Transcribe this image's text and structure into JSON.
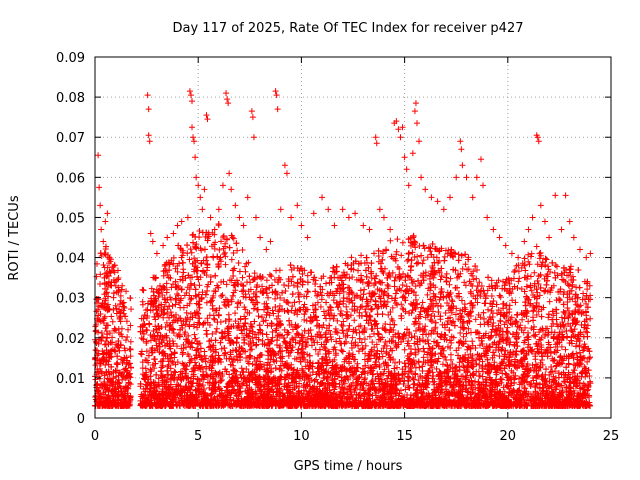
{
  "chart_data": {
    "type": "scatter",
    "title": "Day 117 of 2025, Rate Of TEC Index for receiver p427",
    "xlabel": "GPS time / hours",
    "ylabel": "ROTI / TECUs",
    "xlim": [
      0,
      25
    ],
    "ylim": [
      0,
      0.09
    ],
    "xticks": [
      0,
      5,
      10,
      15,
      20,
      25
    ],
    "xtick_labels": [
      "0",
      "5",
      "10",
      "15",
      "20",
      "25"
    ],
    "yticks": [
      0,
      0.01,
      0.02,
      0.03,
      0.04,
      0.05,
      0.06,
      0.07,
      0.08,
      0.09
    ],
    "ytick_labels": [
      "0",
      "0.01",
      "0.02",
      "0.03",
      "0.04",
      "0.05",
      "0.06",
      "0.07",
      "0.08",
      "0.09"
    ],
    "grid": true,
    "marker": "plus",
    "color": "#ff0000",
    "gaps": [
      [
        1.75,
        2.2
      ]
    ],
    "x_data_range": [
      0,
      24
    ],
    "series": [
      {
        "points": [
          [
            0.05,
            0.019
          ],
          [
            0.15,
            0.0655
          ],
          [
            0.2,
            0.0575
          ],
          [
            0.25,
            0.053
          ],
          [
            0.3,
            0.047
          ],
          [
            0.4,
            0.044
          ],
          [
            0.5,
            0.049
          ],
          [
            0.6,
            0.051
          ],
          [
            0.7,
            0.04
          ],
          [
            0.8,
            0.033
          ],
          [
            0.9,
            0.03
          ],
          [
            1.0,
            0.028
          ],
          [
            1.2,
            0.025
          ],
          [
            1.4,
            0.026
          ],
          [
            1.6,
            0.022
          ],
          [
            2.55,
            0.0805
          ],
          [
            2.6,
            0.077
          ],
          [
            2.6,
            0.0705
          ],
          [
            2.65,
            0.069
          ],
          [
            2.7,
            0.046
          ],
          [
            2.8,
            0.044
          ],
          [
            3.0,
            0.041
          ],
          [
            3.3,
            0.043
          ],
          [
            3.5,
            0.045
          ],
          [
            3.8,
            0.046
          ],
          [
            4.0,
            0.048
          ],
          [
            4.2,
            0.049
          ],
          [
            4.5,
            0.05
          ],
          [
            4.6,
            0.0815
          ],
          [
            4.65,
            0.0805
          ],
          [
            4.7,
            0.079
          ],
          [
            4.7,
            0.0725
          ],
          [
            4.75,
            0.07
          ],
          [
            4.8,
            0.069
          ],
          [
            4.85,
            0.065
          ],
          [
            4.9,
            0.06
          ],
          [
            5.0,
            0.058
          ],
          [
            5.1,
            0.055
          ],
          [
            5.2,
            0.052
          ],
          [
            5.3,
            0.057
          ],
          [
            5.4,
            0.0755
          ],
          [
            5.45,
            0.0745
          ],
          [
            5.6,
            0.05
          ],
          [
            5.8,
            0.047
          ],
          [
            6.0,
            0.052
          ],
          [
            6.2,
            0.058
          ],
          [
            6.35,
            0.081
          ],
          [
            6.4,
            0.0795
          ],
          [
            6.45,
            0.0785
          ],
          [
            6.5,
            0.061
          ],
          [
            6.6,
            0.057
          ],
          [
            6.8,
            0.053
          ],
          [
            7.0,
            0.05
          ],
          [
            7.2,
            0.048
          ],
          [
            7.4,
            0.055
          ],
          [
            7.6,
            0.0765
          ],
          [
            7.65,
            0.075
          ],
          [
            7.7,
            0.07
          ],
          [
            7.8,
            0.05
          ],
          [
            8.0,
            0.045
          ],
          [
            8.3,
            0.042
          ],
          [
            8.5,
            0.044
          ],
          [
            8.75,
            0.0815
          ],
          [
            8.8,
            0.0805
          ],
          [
            8.85,
            0.077
          ],
          [
            9.0,
            0.052
          ],
          [
            9.2,
            0.063
          ],
          [
            9.3,
            0.061
          ],
          [
            9.5,
            0.05
          ],
          [
            9.8,
            0.053
          ],
          [
            10.0,
            0.048
          ],
          [
            10.3,
            0.045
          ],
          [
            10.6,
            0.051
          ],
          [
            11.0,
            0.055
          ],
          [
            11.3,
            0.052
          ],
          [
            11.6,
            0.048
          ],
          [
            12.0,
            0.052
          ],
          [
            12.3,
            0.05
          ],
          [
            12.6,
            0.051
          ],
          [
            13.0,
            0.048
          ],
          [
            13.3,
            0.047
          ],
          [
            13.6,
            0.07
          ],
          [
            13.65,
            0.0685
          ],
          [
            13.8,
            0.052
          ],
          [
            14.0,
            0.05
          ],
          [
            14.3,
            0.047
          ],
          [
            14.5,
            0.0735
          ],
          [
            14.6,
            0.074
          ],
          [
            14.7,
            0.072
          ],
          [
            14.8,
            0.07
          ],
          [
            14.9,
            0.0725
          ],
          [
            15.0,
            0.065
          ],
          [
            15.1,
            0.062
          ],
          [
            15.2,
            0.058
          ],
          [
            15.4,
            0.066
          ],
          [
            15.5,
            0.0765
          ],
          [
            15.55,
            0.0785
          ],
          [
            15.6,
            0.0735
          ],
          [
            15.7,
            0.069
          ],
          [
            15.8,
            0.06
          ],
          [
            16.0,
            0.057
          ],
          [
            16.3,
            0.055
          ],
          [
            16.6,
            0.054
          ],
          [
            16.9,
            0.052
          ],
          [
            17.2,
            0.055
          ],
          [
            17.5,
            0.06
          ],
          [
            17.7,
            0.069
          ],
          [
            17.75,
            0.067
          ],
          [
            17.8,
            0.063
          ],
          [
            18.0,
            0.06
          ],
          [
            18.3,
            0.055
          ],
          [
            18.5,
            0.06
          ],
          [
            18.7,
            0.0645
          ],
          [
            18.8,
            0.058
          ],
          [
            19.0,
            0.05
          ],
          [
            19.3,
            0.047
          ],
          [
            19.6,
            0.045
          ],
          [
            19.9,
            0.043
          ],
          [
            20.2,
            0.041
          ],
          [
            20.5,
            0.04
          ],
          [
            20.8,
            0.044
          ],
          [
            21.0,
            0.047
          ],
          [
            21.2,
            0.05
          ],
          [
            21.4,
            0.0705
          ],
          [
            21.45,
            0.07
          ],
          [
            21.5,
            0.069
          ],
          [
            21.6,
            0.053
          ],
          [
            21.8,
            0.049
          ],
          [
            22.0,
            0.045
          ],
          [
            22.3,
            0.0555
          ],
          [
            22.6,
            0.047
          ],
          [
            22.8,
            0.0555
          ],
          [
            23.0,
            0.049
          ],
          [
            23.2,
            0.045
          ],
          [
            23.5,
            0.042
          ],
          [
            23.8,
            0.04
          ],
          [
            24.0,
            0.041
          ]
        ]
      }
    ]
  }
}
